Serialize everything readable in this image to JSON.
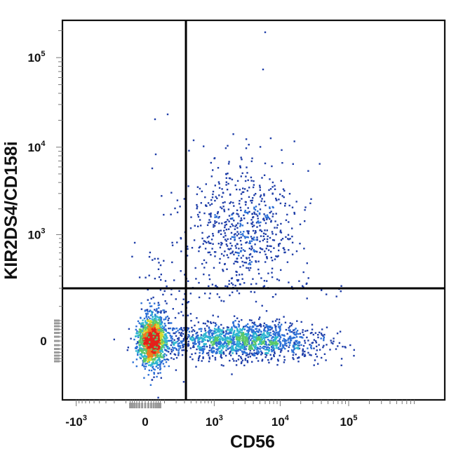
{
  "chart_data": {
    "type": "scatter",
    "subtype": "flow-cytometry-density-dot-plot",
    "xlabel": "CD56",
    "ylabel": "KIR2DS4/CD158i",
    "x_scale": "biexponential",
    "y_scale": "biexponential",
    "xlim": [
      -2000,
      250000
    ],
    "ylim": [
      -350,
      250000
    ],
    "x_ticks": [
      {
        "value": -1000,
        "base": "-10",
        "exp": "3"
      },
      {
        "value": 0,
        "base": "0",
        "exp": ""
      },
      {
        "value": 1000,
        "base": "10",
        "exp": "3"
      },
      {
        "value": 10000,
        "base": "10",
        "exp": "4"
      },
      {
        "value": 100000,
        "base": "10",
        "exp": "5"
      }
    ],
    "y_ticks": [
      {
        "value": 0,
        "base": "0",
        "exp": ""
      },
      {
        "value": 1000,
        "base": "10",
        "exp": "3"
      },
      {
        "value": 10000,
        "base": "10",
        "exp": "4"
      },
      {
        "value": 100000,
        "base": "10",
        "exp": "5"
      }
    ],
    "quadrant_gates": {
      "x": 320,
      "y": 200
    },
    "populations": [
      {
        "name": "CD56- KIR-",
        "center": [
          30,
          0
        ],
        "spread": "tight",
        "relative_count": "highest"
      },
      {
        "name": "CD56+ KIR-",
        "center": [
          2500,
          0
        ],
        "spread": "wide",
        "relative_count": "high"
      },
      {
        "name": "CD56+ KIR+",
        "center": [
          2800,
          1100
        ],
        "spread": "wide",
        "relative_count": "medium"
      }
    ],
    "density_colors": [
      "#1f3ea8",
      "#2b6fd6",
      "#2fb6d0",
      "#5ac86a",
      "#d6d92e",
      "#f07a1e",
      "#e3221c"
    ],
    "grid": false
  }
}
